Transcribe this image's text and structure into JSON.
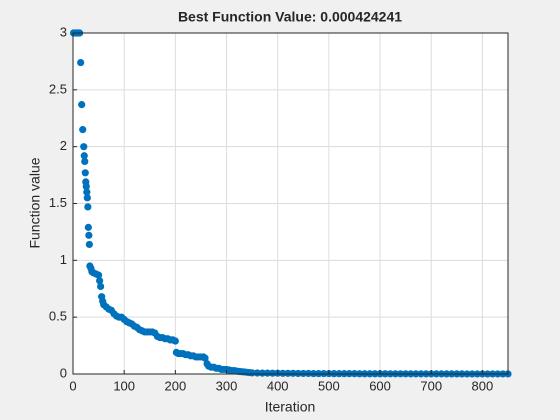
{
  "chart_data": {
    "type": "scatter",
    "title": "Best Function Value: 0.000424241",
    "xlabel": "Iteration",
    "ylabel": "Function value",
    "color": "#0072bd",
    "grid": true,
    "xlim": [
      0,
      850
    ],
    "ylim": [
      0,
      3
    ],
    "xticks": [
      0,
      100,
      200,
      300,
      400,
      500,
      600,
      700,
      800
    ],
    "yticks": [
      0,
      0.5,
      1,
      1.5,
      2,
      2.5,
      3
    ],
    "x": [
      1,
      3,
      5,
      7,
      9,
      11,
      13,
      15,
      17,
      19,
      21,
      22,
      23,
      24,
      25,
      26,
      27,
      28,
      29,
      30,
      31,
      32,
      33,
      35,
      37,
      40,
      45,
      50,
      52,
      54,
      56,
      58,
      60,
      65,
      70,
      75,
      80,
      85,
      90,
      95,
      100,
      105,
      110,
      115,
      120,
      125,
      130,
      135,
      140,
      145,
      150,
      155,
      160,
      165,
      170,
      175,
      180,
      185,
      190,
      195,
      200,
      202,
      206,
      210,
      215,
      220,
      225,
      230,
      235,
      240,
      245,
      250,
      255,
      258,
      262,
      265,
      270,
      275,
      280,
      285,
      290,
      295,
      300,
      305,
      310,
      315,
      320,
      325,
      330,
      335,
      340,
      345,
      350,
      360,
      370,
      380,
      390,
      400,
      410,
      420,
      430,
      440,
      450,
      460,
      470,
      480,
      490,
      500,
      510,
      520,
      530,
      540,
      550,
      560,
      570,
      580,
      590,
      600,
      610,
      620,
      630,
      640,
      650,
      660,
      670,
      680,
      690,
      700,
      710,
      720,
      730,
      740,
      750,
      760,
      770,
      780,
      790,
      800,
      810,
      820,
      830,
      840,
      850
    ],
    "values": [
      3,
      3,
      3,
      3,
      3,
      3,
      3,
      2.74,
      2.37,
      2.15,
      2.0,
      1.92,
      1.87,
      1.77,
      1.69,
      1.65,
      1.6,
      1.55,
      1.47,
      1.29,
      1.22,
      1.14,
      0.95,
      0.93,
      0.9,
      0.89,
      0.88,
      0.87,
      0.82,
      0.77,
      0.68,
      0.64,
      0.61,
      0.59,
      0.57,
      0.56,
      0.53,
      0.51,
      0.5,
      0.5,
      0.48,
      0.46,
      0.45,
      0.44,
      0.42,
      0.41,
      0.39,
      0.38,
      0.37,
      0.37,
      0.37,
      0.37,
      0.36,
      0.33,
      0.32,
      0.32,
      0.31,
      0.31,
      0.3,
      0.3,
      0.29,
      0.19,
      0.18,
      0.18,
      0.18,
      0.17,
      0.17,
      0.16,
      0.16,
      0.15,
      0.15,
      0.15,
      0.15,
      0.14,
      0.09,
      0.07,
      0.06,
      0.06,
      0.05,
      0.05,
      0.04,
      0.04,
      0.04,
      0.035,
      0.03,
      0.03,
      0.025,
      0.022,
      0.02,
      0.018,
      0.015,
      0.012,
      0.01,
      0.009,
      0.008,
      0.008,
      0.007,
      0.007,
      0.006,
      0.006,
      0.006,
      0.005,
      0.005,
      0.005,
      0.004,
      0.004,
      0.004,
      0.004,
      0.003,
      0.003,
      0.003,
      0.003,
      0.003,
      0.002,
      0.002,
      0.002,
      0.002,
      0.002,
      0.002,
      0.0015,
      0.0015,
      0.0015,
      0.0015,
      0.0012,
      0.0012,
      0.0012,
      0.001,
      0.001,
      0.001,
      0.001,
      0.0009,
      0.0009,
      0.0008,
      0.0008,
      0.0007,
      0.0007,
      0.0006,
      0.0006,
      0.0005,
      0.0005,
      0.00045,
      0.00043,
      0.000424241
    ]
  }
}
